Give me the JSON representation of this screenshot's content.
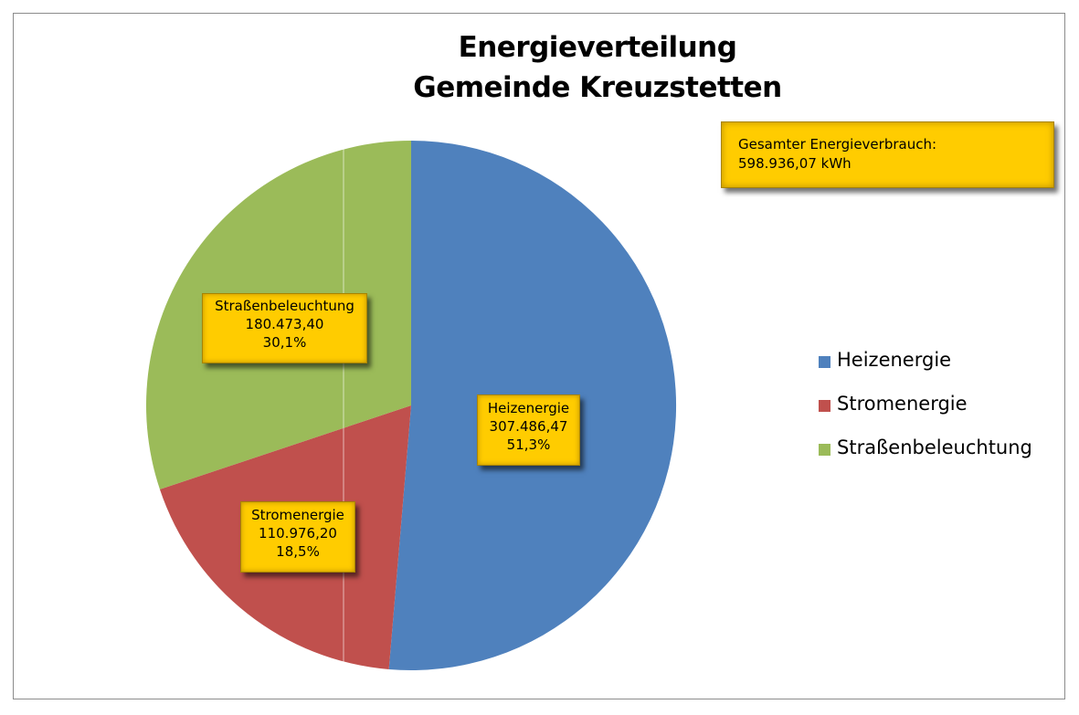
{
  "chart_data": {
    "type": "pie",
    "title": [
      "Energieverteilung",
      "Gemeinde Kreuzstetten"
    ],
    "unit": "kWh",
    "total": {
      "label": "Gesamter Energieverbrauch:",
      "value": "598.936,07 kWh"
    },
    "slices": [
      {
        "name": "Heizenergie",
        "value": 307486.47,
        "value_label": "307.486,47",
        "percent": 51.3,
        "percent_label": "51,3%",
        "color": "#4f81bd"
      },
      {
        "name": "Stromenergie",
        "value": 110976.2,
        "value_label": "110.976,20",
        "percent": 18.5,
        "percent_label": "18,5%",
        "color": "#c0504d"
      },
      {
        "name": "Straßenbeleuchtung",
        "value": 180473.4,
        "value_label": "180.473,40",
        "percent": 30.1,
        "percent_label": "30,1%",
        "color": "#9bbb59"
      }
    ],
    "legend": {
      "position": "right",
      "entries": [
        "Heizenergie",
        "Stromenergie",
        "Straßenbeleuchtung"
      ]
    },
    "label_box_color": "#ffcc00"
  }
}
